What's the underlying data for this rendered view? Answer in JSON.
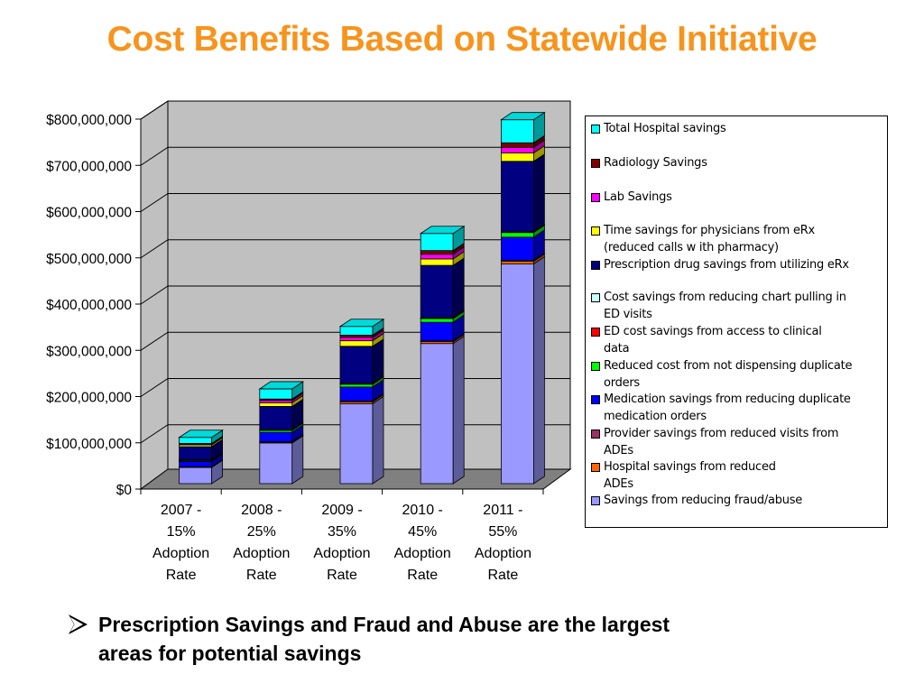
{
  "title": "Cost Benefits Based on Statewide Initiative",
  "bullet": {
    "icon": "arrow-bullet-icon",
    "text": "Prescription Savings and Fraud and Abuse are the largest\nareas for potential savings"
  },
  "chart_data": {
    "type": "bar",
    "stacked": true,
    "three_d": true,
    "ylim": [
      0,
      800000000
    ],
    "y_ticks": [
      "$0",
      "$100,000,000",
      "$200,000,000",
      "$300,000,000",
      "$400,000,000",
      "$500,000,000",
      "$600,000,000",
      "$700,000,000",
      "$800,000,000"
    ],
    "y_tick_values": [
      0,
      100000000,
      200000000,
      300000000,
      400000000,
      500000000,
      600000000,
      700000000,
      800000000
    ],
    "categories": [
      "2007 -\n15%\nAdoption\nRate",
      "2008 -\n25%\nAdoption\nRate",
      "2009 -\n35%\nAdoption\nRate",
      "2010 -\n45%\nAdoption\nRate",
      "2011 -\n55%\nAdoption\nRate"
    ],
    "grid": true,
    "legend_position": "right",
    "series": [
      {
        "name": "Savings from reducing fraud/abuse",
        "color": "#9999FF",
        "values": [
          35000000,
          88000000,
          173000000,
          303000000,
          475000000
        ]
      },
      {
        "name": "Hospital savings from reduced\nADEs",
        "color": "#FF6600",
        "values": [
          1000000,
          2000000,
          4000000,
          4000000,
          6000000
        ]
      },
      {
        "name": "Provider savings from reduced visits from\nADEs",
        "color": "#993366",
        "values": [
          1000000,
          1000000,
          2000000,
          2000000,
          2000000
        ]
      },
      {
        "name": "Medication savings from reducing duplicate\nmedication orders",
        "color": "#0000FF",
        "values": [
          11000000,
          20000000,
          30000000,
          40000000,
          50000000
        ]
      },
      {
        "name": "Reduced cost from not dispensing duplicate\norders",
        "color": "#00FF00",
        "values": [
          2000000,
          4000000,
          6000000,
          8000000,
          10000000
        ]
      },
      {
        "name": "ED cost savings from access to clinical\ndata",
        "color": "#FF0000",
        "values": [
          1000000,
          1000000,
          1000000,
          1000000,
          1000000
        ]
      },
      {
        "name": "Cost savings from reducing chart pulling in\nED visits",
        "color": "#CCFFFF",
        "values": [
          1000000,
          1000000,
          1000000,
          1000000,
          1000000
        ]
      },
      {
        "name": "Prescription drug savings from utilizing eRx",
        "color": "#000080",
        "values": [
          28000000,
          50000000,
          80000000,
          113000000,
          152000000
        ]
      },
      {
        "name": "Time savings for physicians from eRx\n(reduced calls w ith pharmacy)",
        "color": "#FFFF00",
        "values": [
          4000000,
          8000000,
          12000000,
          14000000,
          18000000
        ]
      },
      {
        "name": "Lab Savings",
        "color": "#FF00FF",
        "values": [
          2000000,
          5000000,
          7000000,
          10000000,
          12000000
        ]
      },
      {
        "name": "Radiology Savings",
        "color": "#800000",
        "values": [
          1000000,
          3000000,
          5000000,
          8000000,
          10000000
        ]
      },
      {
        "name": "Total Hospital savings",
        "color": "#00FFFF",
        "values": [
          13000000,
          22000000,
          19000000,
          37000000,
          50000000
        ]
      }
    ]
  }
}
